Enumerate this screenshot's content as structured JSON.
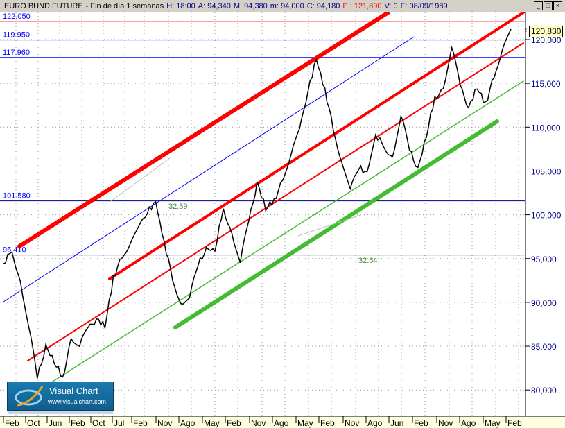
{
  "window": {
    "instrument": "EURO BUND FUTURE",
    "period": "- Fin de día 1 semanas",
    "H": "H: 18:00",
    "A": "A: 94,340",
    "M": "M: 94,380",
    "m": "m: 94,000",
    "C": "C: 94,180",
    "P": "P : 121,890",
    "V": "V: 0",
    "F": "F: 08/09/1989",
    "controls": {
      "minimize": "_",
      "maximize": "□",
      "close": "×"
    }
  },
  "logo": {
    "title": "Visual Chart",
    "url": "www.visualchart.com"
  },
  "last_price": "120,830",
  "chart_data": {
    "type": "line",
    "title": "EURO BUND FUTURE",
    "x_tick_labels": [
      "Feb",
      "Oct",
      "Jun",
      "Feb",
      "Oct",
      "Jul",
      "Feb",
      "Nov",
      "Ago",
      "May",
      "Feb",
      "Nov",
      "Ago",
      "May",
      "Feb",
      "Nov",
      "Ago",
      "Jun",
      "Feb",
      "Nov",
      "Ago",
      "May",
      "Feb"
    ],
    "y_ticks": [
      80,
      85,
      90,
      95,
      100,
      105,
      110,
      115,
      120
    ],
    "y_tick_labels": [
      "80,000",
      "85,000",
      "90,000",
      "95,000",
      "100,000",
      "105,000",
      "110,000",
      "115,000",
      "120,000"
    ],
    "ylim": [
      77.5,
      123.4
    ],
    "grid": true,
    "series": [
      {
        "color": "#000000",
        "values": [
          94.4,
          96.0,
          92.1,
          87.3,
          81.4,
          84.9,
          83.3,
          81.4,
          85.7,
          85.3,
          86.9,
          88.1,
          87.3,
          92.8,
          95.2,
          96.8,
          98.4,
          100.4,
          101.4,
          96.8,
          92.8,
          89.6,
          90.5,
          94.4,
          96.0,
          96.0,
          100.8,
          97.6,
          94.8,
          99.2,
          103.6,
          100.8,
          101.6,
          103.9,
          107.1,
          109.5,
          114.2,
          117.8,
          114.2,
          109.9,
          105.9,
          102.8,
          105.5,
          104.7,
          109.1,
          107.9,
          106.3,
          111.4,
          107.5,
          105.1,
          109.1,
          113.4,
          114.2,
          119.4,
          114.6,
          112.2,
          114.6,
          112.6,
          115.8,
          119.0,
          120.9
        ]
      }
    ],
    "horizontal_levels": [
      {
        "label": "122.050",
        "value": 122.05,
        "color": "#ff0000"
      },
      {
        "label": "119.950",
        "value": 119.95,
        "color": "#0000ff"
      },
      {
        "label": "117.960",
        "value": 117.96,
        "color": "#0000ff"
      },
      {
        "label": "101.580",
        "value": 101.58,
        "color": "#000080"
      },
      {
        "label": "95.410",
        "value": 95.41,
        "color": "#000080"
      }
    ],
    "annotations": [
      "32.59",
      "32.64"
    ],
    "colors": {
      "resistance": "#ff0000",
      "support": "#44bb33",
      "channel": "#0000ff",
      "axis_bg": "#ffffe0"
    }
  }
}
